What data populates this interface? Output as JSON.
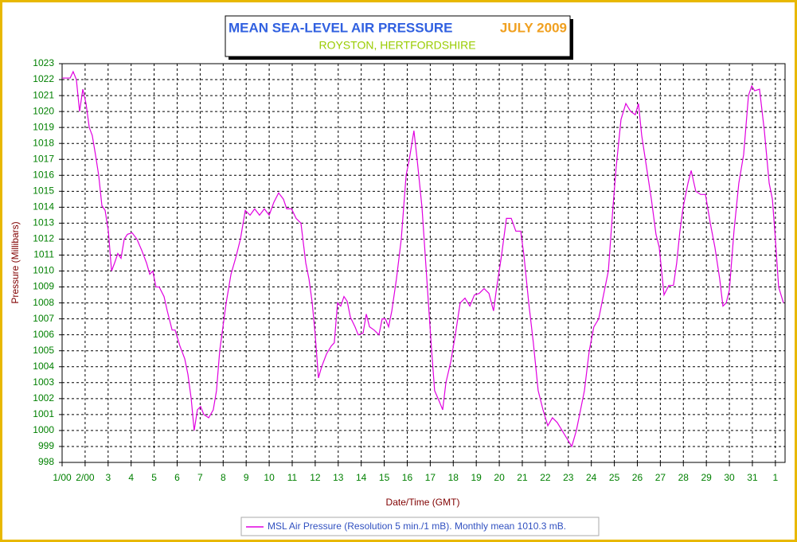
{
  "chart_data": {
    "type": "line",
    "title": "MEAN SEA-LEVEL AIR PRESSURE",
    "title_date": "JULY 2009",
    "subtitle": "ROYSTON, HERTFORDSHIRE",
    "y_label": "Pressure (Millibars)",
    "x_label": "Date/Time (GMT)",
    "grid": true,
    "ylim": [
      998,
      1023
    ],
    "yticks": [
      998,
      999,
      1000,
      1001,
      1002,
      1003,
      1004,
      1005,
      1006,
      1007,
      1008,
      1009,
      1010,
      1011,
      1012,
      1013,
      1014,
      1015,
      1016,
      1017,
      1018,
      1019,
      1020,
      1021,
      1022,
      1023
    ],
    "xlim": [
      1,
      32.42
    ],
    "xticks": [
      {
        "value": 1,
        "label": "1/00"
      },
      {
        "value": 2,
        "label": "2/00"
      },
      3,
      4,
      5,
      6,
      7,
      8,
      9,
      10,
      11,
      12,
      13,
      14,
      15,
      16,
      17,
      18,
      19,
      20,
      21,
      22,
      23,
      24,
      25,
      26,
      27,
      28,
      29,
      30,
      31,
      {
        "value": 32,
        "label": "1"
      }
    ],
    "x": [
      1.0,
      1.35,
      1.48,
      1.62,
      1.76,
      1.9,
      2.04,
      2.18,
      2.31,
      2.45,
      2.59,
      2.73,
      2.87,
      3.01,
      3.15,
      3.28,
      3.42,
      3.56,
      3.7,
      3.84,
      4.04,
      4.25,
      4.46,
      4.67,
      4.81,
      4.94,
      5.08,
      5.22,
      5.43,
      5.57,
      5.78,
      5.91,
      6.12,
      6.33,
      6.47,
      6.61,
      6.74,
      6.88,
      7.02,
      7.16,
      7.37,
      7.57,
      7.71,
      7.85,
      7.99,
      8.13,
      8.34,
      8.54,
      8.75,
      8.96,
      9.17,
      9.37,
      9.58,
      9.79,
      10.0,
      10.2,
      10.41,
      10.62,
      10.76,
      10.97,
      11.17,
      11.38,
      11.59,
      11.73,
      11.87,
      12.0,
      12.14,
      12.28,
      12.49,
      12.7,
      12.83,
      12.97,
      13.11,
      13.25,
      13.39,
      13.53,
      13.73,
      13.87,
      14.08,
      14.22,
      14.36,
      14.56,
      14.77,
      14.91,
      15.05,
      15.19,
      15.33,
      15.53,
      15.74,
      15.95,
      16.09,
      16.29,
      16.43,
      16.64,
      16.85,
      17.06,
      17.19,
      17.4,
      17.54,
      17.68,
      17.89,
      18.09,
      18.3,
      18.51,
      18.72,
      18.92,
      19.13,
      19.34,
      19.55,
      19.75,
      19.89,
      20.1,
      20.31,
      20.52,
      20.72,
      20.93,
      21.07,
      21.28,
      21.48,
      21.69,
      21.9,
      22.11,
      22.31,
      22.52,
      22.73,
      22.94,
      23.15,
      23.35,
      23.56,
      23.7,
      23.91,
      24.11,
      24.32,
      24.53,
      24.74,
      24.94,
      25.08,
      25.29,
      25.5,
      25.71,
      25.91,
      26.05,
      26.19,
      26.4,
      26.61,
      26.81,
      26.95,
      27.16,
      27.37,
      27.57,
      27.71,
      27.85,
      27.99,
      28.2,
      28.34,
      28.54,
      28.75,
      28.96,
      29.17,
      29.37,
      29.58,
      29.72,
      29.86,
      30.0,
      30.2,
      30.41,
      30.62,
      30.83,
      30.97,
      31.1,
      31.31,
      31.52,
      31.73,
      31.87,
      32.0,
      32.14,
      32.35
    ],
    "series": [
      {
        "name": "MSL Air Pressure (Resolution 5 min./1 mB). Monthly mean 1010.3 mB.",
        "color": "#e000e0",
        "values": [
          1022.1,
          1022.1,
          1022.5,
          1022.0,
          1020.0,
          1021.4,
          1020.5,
          1019.0,
          1018.5,
          1017.3,
          1016.0,
          1014.1,
          1013.8,
          1012.5,
          1010.0,
          1010.5,
          1011.1,
          1010.8,
          1012.0,
          1012.3,
          1012.4,
          1012.0,
          1011.3,
          1010.5,
          1009.8,
          1010.0,
          1009.0,
          1009.0,
          1008.4,
          1007.5,
          1006.3,
          1006.3,
          1005.3,
          1004.5,
          1003.5,
          1002.0,
          1000.0,
          1001.3,
          1001.5,
          1001.0,
          1000.8,
          1001.3,
          1002.5,
          1005.0,
          1006.5,
          1008.0,
          1009.8,
          1010.8,
          1012.0,
          1013.8,
          1013.5,
          1013.9,
          1013.5,
          1013.9,
          1013.5,
          1014.3,
          1014.9,
          1014.5,
          1013.9,
          1013.9,
          1013.3,
          1013.0,
          1010.5,
          1009.5,
          1008.0,
          1006.0,
          1003.3,
          1004.0,
          1004.8,
          1005.3,
          1005.5,
          1008.0,
          1007.8,
          1008.4,
          1008.1,
          1007.1,
          1006.5,
          1006.0,
          1006.1,
          1007.3,
          1006.5,
          1006.3,
          1006.0,
          1007.0,
          1007.0,
          1006.5,
          1007.5,
          1009.5,
          1012.0,
          1016.0,
          1017.0,
          1018.8,
          1017.0,
          1014.0,
          1009.5,
          1005.0,
          1002.5,
          1001.8,
          1001.3,
          1003.0,
          1004.3,
          1006.0,
          1008.0,
          1008.3,
          1007.8,
          1008.5,
          1008.6,
          1008.9,
          1008.6,
          1007.5,
          1009.0,
          1011.0,
          1013.3,
          1013.3,
          1012.5,
          1012.5,
          1011.0,
          1008.0,
          1005.5,
          1002.5,
          1001.3,
          1000.3,
          1000.8,
          1000.5,
          1000.0,
          999.5,
          999.0,
          1000.0,
          1001.5,
          1002.5,
          1005.0,
          1006.5,
          1007.0,
          1008.5,
          1010.0,
          1014.0,
          1016.5,
          1019.5,
          1020.5,
          1020.0,
          1019.8,
          1020.5,
          1018.5,
          1016.5,
          1014.5,
          1012.3,
          1011.5,
          1008.5,
          1009.1,
          1009.1,
          1010.5,
          1012.5,
          1014.0,
          1015.5,
          1016.3,
          1015.0,
          1014.8,
          1014.8,
          1013.0,
          1011.5,
          1009.5,
          1007.8,
          1008.0,
          1008.8,
          1012.5,
          1015.5,
          1017.3,
          1021.0,
          1021.6,
          1021.3,
          1021.4,
          1018.8,
          1015.5,
          1014.5,
          1012.0,
          1009.0,
          1008.0
        ]
      }
    ]
  }
}
